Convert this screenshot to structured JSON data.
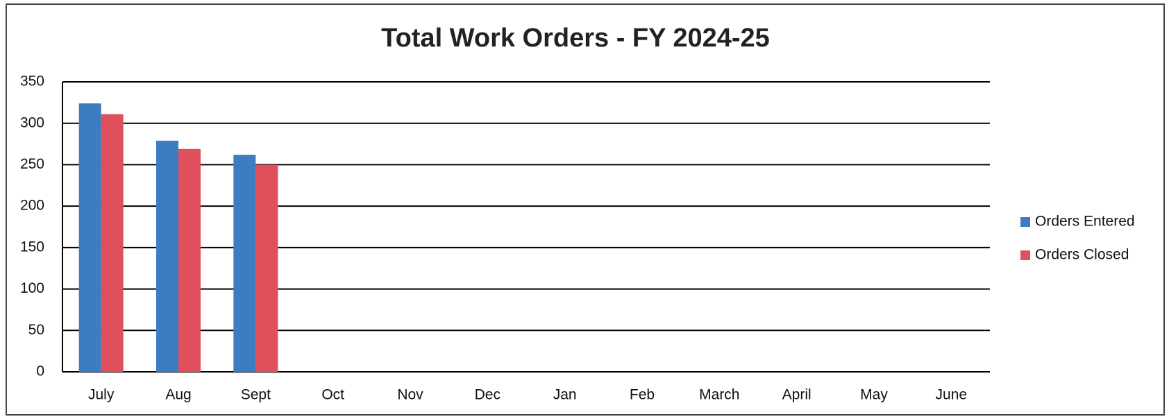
{
  "chart_data": {
    "type": "bar",
    "title": "Total Work Orders - FY 2024-25",
    "categories": [
      "July",
      "Aug",
      "Sept",
      "Oct",
      "Nov",
      "Dec",
      "Jan",
      "Feb",
      "March",
      "April",
      "May",
      "June"
    ],
    "series": [
      {
        "name": "Orders Entered",
        "color": "#3d7cc0",
        "values": [
          324,
          279,
          262,
          null,
          null,
          null,
          null,
          null,
          null,
          null,
          null,
          null
        ]
      },
      {
        "name": "Orders Closed",
        "color": "#df4f5c",
        "values": [
          311,
          269,
          250,
          null,
          null,
          null,
          null,
          null,
          null,
          null,
          null,
          null
        ]
      }
    ],
    "ylim": [
      0,
      350
    ],
    "yticks": [
      0,
      50,
      100,
      150,
      200,
      250,
      300,
      350
    ],
    "grid": true,
    "legend": "right"
  }
}
